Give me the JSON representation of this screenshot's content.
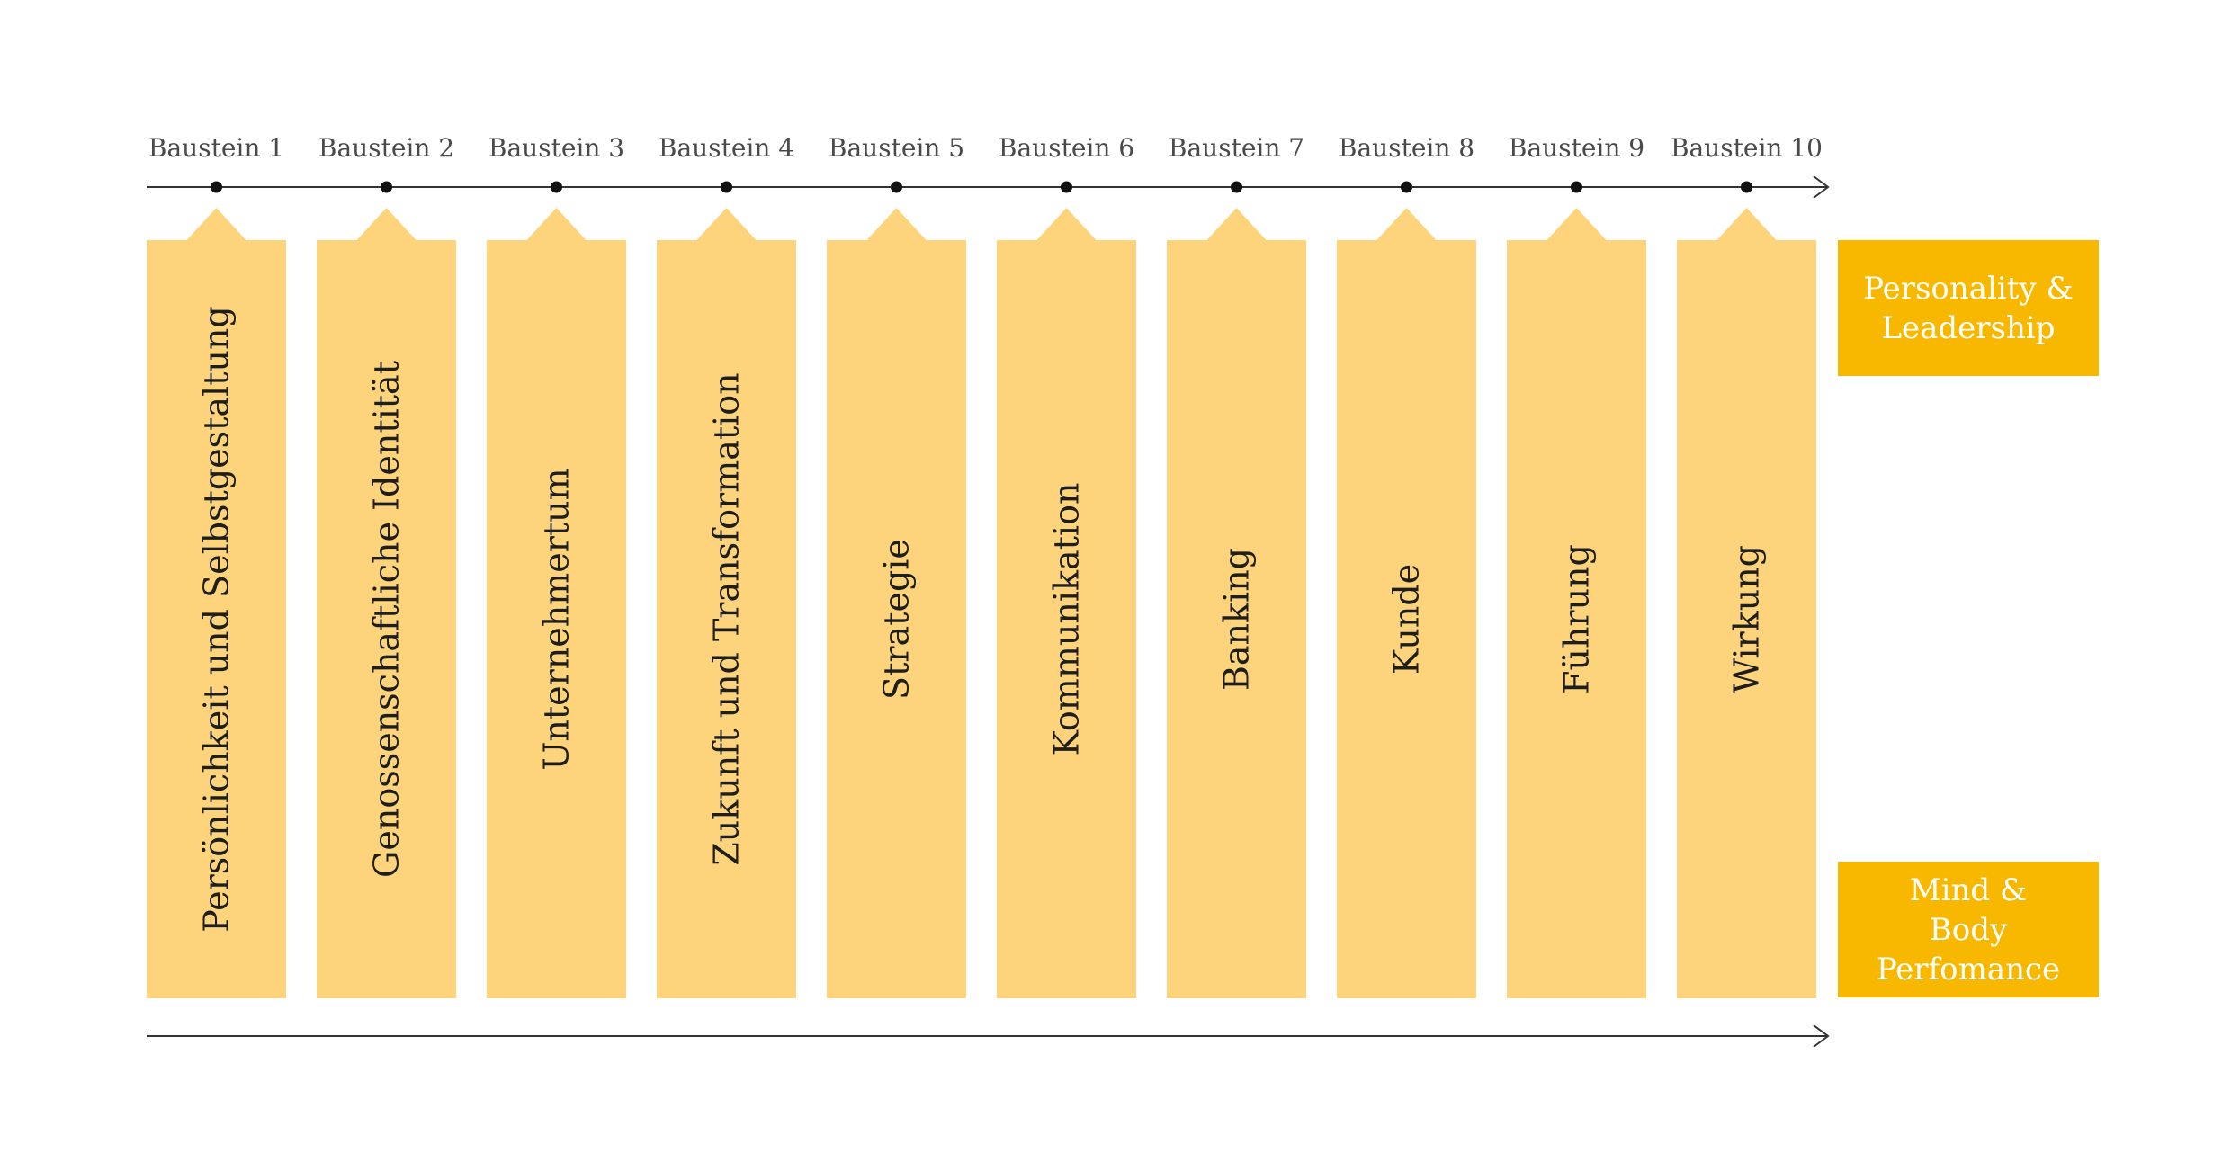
{
  "modules": [
    {
      "step": "Baustein 1",
      "title": "Persönlichkeit und Selbstgestaltung"
    },
    {
      "step": "Baustein 2",
      "title": "Genossenschaftliche Identität"
    },
    {
      "step": "Baustein 3",
      "title": "Unternehmertum"
    },
    {
      "step": "Baustein 4",
      "title": "Zukunft und Transformation"
    },
    {
      "step": "Baustein 5",
      "title": "Strategie"
    },
    {
      "step": "Baustein 6",
      "title": "Kommunikation"
    },
    {
      "step": "Baustein 7",
      "title": "Banking"
    },
    {
      "step": "Baustein 8",
      "title": "Kunde"
    },
    {
      "step": "Baustein 9",
      "title": "Führung"
    },
    {
      "step": "Baustein 10",
      "title": "Wirkung"
    }
  ],
  "side_boxes": {
    "top": "Personality &\nLeadership",
    "bottom": "Mind &\nBody Perfomance"
  },
  "colors": {
    "module_fill": "#fdd47c",
    "side_fill": "#f9b800",
    "line": "#333333",
    "dot": "#111111"
  }
}
